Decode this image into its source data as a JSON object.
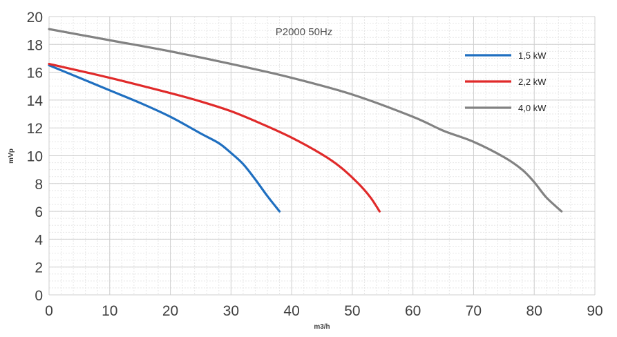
{
  "chart_data": {
    "type": "line",
    "title": "P2000 50Hz",
    "xlabel": "m3/h",
    "ylabel": "mVp",
    "xlim": [
      0,
      90
    ],
    "ylim": [
      0,
      20
    ],
    "x_ticks": [
      "0",
      "10",
      "20",
      "30",
      "40",
      "50",
      "60",
      "70",
      "80",
      "90"
    ],
    "y_ticks": [
      "0",
      "2",
      "4",
      "6",
      "8",
      "10",
      "12",
      "14",
      "16",
      "18",
      "20"
    ],
    "grid": true,
    "legend_position": "top-right",
    "series": [
      {
        "name": "1,5 kW",
        "color": "#1f6fc0",
        "points": [
          [
            0,
            16.5
          ],
          [
            5,
            15.6
          ],
          [
            10,
            14.7
          ],
          [
            15,
            13.8
          ],
          [
            20,
            12.8
          ],
          [
            25,
            11.6
          ],
          [
            28,
            10.9
          ],
          [
            30,
            10.2
          ],
          [
            32,
            9.4
          ],
          [
            34,
            8.3
          ],
          [
            36,
            7.1
          ],
          [
            38,
            6.0
          ]
        ]
      },
      {
        "name": "2,2 kW",
        "color": "#e02a2a",
        "points": [
          [
            0,
            16.6
          ],
          [
            10,
            15.6
          ],
          [
            20,
            14.5
          ],
          [
            25,
            13.9
          ],
          [
            30,
            13.2
          ],
          [
            35,
            12.3
          ],
          [
            40,
            11.3
          ],
          [
            45,
            10.1
          ],
          [
            48,
            9.2
          ],
          [
            51,
            8.0
          ],
          [
            53,
            7.0
          ],
          [
            54.5,
            6.0
          ]
        ]
      },
      {
        "name": "4,0 kW",
        "color": "#828282",
        "points": [
          [
            0,
            19.1
          ],
          [
            10,
            18.3
          ],
          [
            20,
            17.5
          ],
          [
            30,
            16.6
          ],
          [
            40,
            15.6
          ],
          [
            50,
            14.4
          ],
          [
            60,
            12.8
          ],
          [
            65,
            11.8
          ],
          [
            70,
            11.0
          ],
          [
            75,
            9.9
          ],
          [
            78,
            9.0
          ],
          [
            80,
            8.1
          ],
          [
            82,
            7.0
          ],
          [
            84.5,
            6.0
          ]
        ]
      }
    ]
  }
}
